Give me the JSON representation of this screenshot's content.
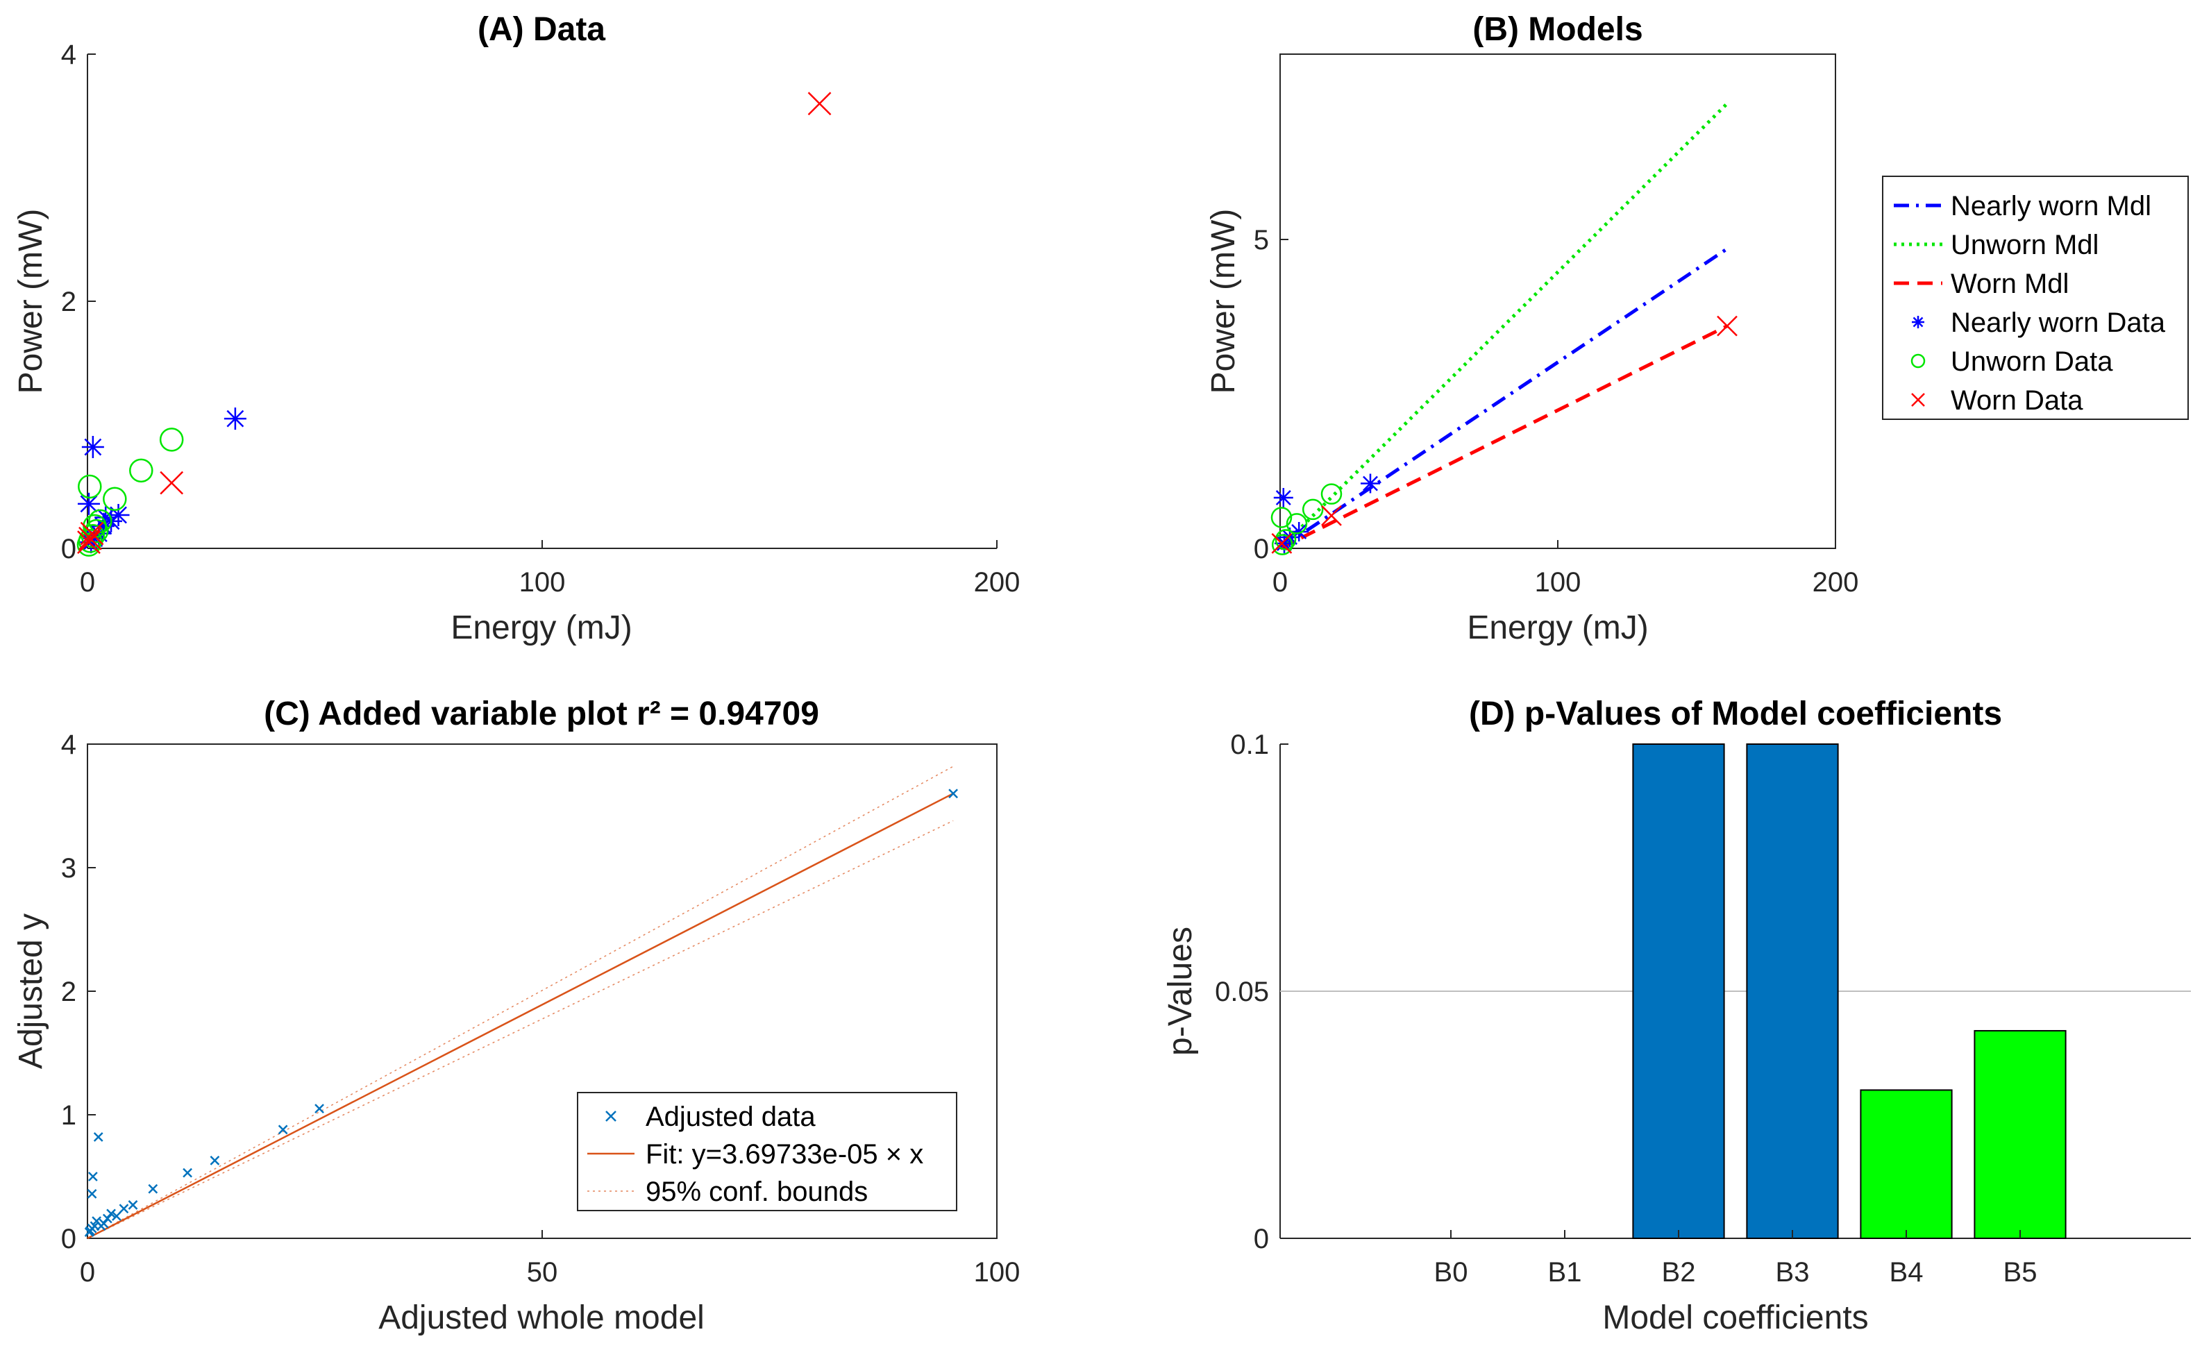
{
  "colors": {
    "nearly_worn": "#0000ff",
    "unworn": "#00e600",
    "worn": "#ff0000",
    "scatter_c": "#0072bd",
    "fit_c": "#d95319",
    "bar_blue": "#0072bd",
    "bar_green": "#00ff00",
    "refline": "#bfbfbf"
  },
  "chart_data": [
    {
      "id": "A",
      "type": "scatter",
      "title": "(A) Data",
      "xlabel": "Energy (mJ)",
      "ylabel": "Power (mW)",
      "xlim": [
        0,
        200
      ],
      "ylim": [
        0,
        4
      ],
      "xticks": [
        "0",
        "100",
        "200"
      ],
      "yticks": [
        "0",
        "2",
        "4"
      ],
      "grid": false,
      "series": [
        {
          "marker": "asterisk",
          "color": "#0000ff",
          "points": [
            [
              0.3,
              0.36
            ],
            [
              1.2,
              0.82
            ],
            [
              32.5,
              1.05
            ],
            [
              6.8,
              0.27
            ],
            [
              5.2,
              0.22
            ],
            [
              3.5,
              0.18
            ],
            [
              2.5,
              0.12
            ],
            [
              1.5,
              0.08
            ],
            [
              0.8,
              0.05
            ],
            [
              4.0,
              0.25
            ]
          ]
        },
        {
          "marker": "circle",
          "color": "#00e600",
          "points": [
            [
              0.5,
              0.5
            ],
            [
              18.5,
              0.88
            ],
            [
              11.8,
              0.63
            ],
            [
              6.0,
              0.4
            ],
            [
              2.8,
              0.22
            ],
            [
              2.0,
              0.14
            ],
            [
              1.2,
              0.1
            ],
            [
              0.6,
              0.06
            ],
            [
              0.3,
              0.03
            ],
            [
              1.6,
              0.18
            ]
          ]
        },
        {
          "marker": "x",
          "color": "#ff0000",
          "points": [
            [
              161,
              3.6
            ],
            [
              18.5,
              0.53
            ],
            [
              0.6,
              0.08
            ],
            [
              0.3,
              0.05
            ],
            [
              1.0,
              0.12
            ]
          ]
        }
      ]
    },
    {
      "id": "B",
      "type": "line",
      "title": "(B) Models",
      "xlabel": "Energy (mJ)",
      "ylabel": "Power (mW)",
      "xlim": [
        0,
        200
      ],
      "ylim": [
        0,
        8
      ],
      "xticks": [
        "0",
        "100",
        "200"
      ],
      "yticks": [
        "0",
        "5"
      ],
      "grid": false,
      "legend_position": "outside-right",
      "series": [
        {
          "name": "Nearly worn Mdl",
          "style": "dashdot",
          "color": "#0000ff",
          "points": [
            [
              0,
              0
            ],
            [
              161,
              4.85
            ]
          ]
        },
        {
          "name": "Unworn Mdl",
          "style": "dotted",
          "color": "#00e600",
          "points": [
            [
              0,
              0
            ],
            [
              161,
              7.2
            ]
          ]
        },
        {
          "name": "Worn Mdl",
          "style": "dashed",
          "color": "#ff0000",
          "points": [
            [
              0,
              0
            ],
            [
              161,
              3.6
            ]
          ]
        },
        {
          "name": "Nearly worn Data",
          "marker": "asterisk",
          "color": "#0000ff",
          "points": [
            [
              1.2,
              0.82
            ],
            [
              32.5,
              1.05
            ],
            [
              6.8,
              0.27
            ],
            [
              3.5,
              0.18
            ],
            [
              1.5,
              0.08
            ]
          ]
        },
        {
          "name": "Unworn Data",
          "marker": "circle",
          "color": "#00e600",
          "points": [
            [
              0.5,
              0.5
            ],
            [
              18.5,
              0.88
            ],
            [
              11.8,
              0.63
            ],
            [
              6.0,
              0.4
            ],
            [
              2.0,
              0.14
            ],
            [
              0.8,
              0.06
            ]
          ]
        },
        {
          "name": "Worn Data",
          "marker": "x",
          "color": "#ff0000",
          "points": [
            [
              161,
              3.6
            ],
            [
              18.5,
              0.53
            ],
            [
              0.6,
              0.08
            ]
          ]
        }
      ]
    },
    {
      "id": "C",
      "type": "scatter",
      "title": "(C) Added variable plot r² = 0.94709",
      "xlabel": "Adjusted whole model",
      "ylabel": "Adjusted y",
      "xlim": [
        0,
        100
      ],
      "ylim": [
        0,
        4
      ],
      "xticks": [
        "0",
        "50",
        "100"
      ],
      "yticks": [
        "0",
        "1",
        "2",
        "3",
        "4"
      ],
      "grid": false,
      "legend_position": "bottom-right",
      "series": [
        {
          "name": "Adjusted data",
          "marker": "x",
          "color": "#0072bd",
          "points": [
            [
              95.2,
              3.6
            ],
            [
              25.5,
              1.05
            ],
            [
              21.5,
              0.88
            ],
            [
              14,
              0.63
            ],
            [
              11,
              0.53
            ],
            [
              7.2,
              0.4
            ],
            [
              5,
              0.27
            ],
            [
              4,
              0.24
            ],
            [
              3.2,
              0.18
            ],
            [
              2.6,
              0.2
            ],
            [
              2.2,
              0.16
            ],
            [
              1.8,
              0.12
            ],
            [
              1.2,
              0.82
            ],
            [
              0.6,
              0.5
            ],
            [
              0.5,
              0.36
            ],
            [
              1.0,
              0.14
            ],
            [
              0.8,
              0.1
            ],
            [
              0.5,
              0.08
            ],
            [
              0.3,
              0.06
            ],
            [
              0.2,
              0.05
            ],
            [
              1.5,
              0.1
            ]
          ]
        },
        {
          "name": "Fit: y=3.69733e-05 × x",
          "style": "solid",
          "color": "#d95319",
          "points": [
            [
              0,
              0
            ],
            [
              95.2,
              3.6
            ]
          ]
        },
        {
          "name": "95% conf. bounds",
          "style": "dotted",
          "color": "#d95319",
          "upper": [
            [
              0,
              0
            ],
            [
              95.2,
              3.82
            ]
          ],
          "lower": [
            [
              0,
              0
            ],
            [
              95.2,
              3.38
            ]
          ]
        }
      ]
    },
    {
      "id": "D",
      "type": "bar",
      "title": "(D) p-Values of Model coefficients",
      "xlabel": "Model coefficients",
      "ylabel": "p-Values",
      "categories": [
        "B0",
        "B1",
        "B2",
        "B3",
        "B4",
        "B5"
      ],
      "values": [
        0,
        0,
        0.1,
        0.1,
        0.03,
        0.042
      ],
      "bar_colors": [
        "#0072bd",
        "#0072bd",
        "#0072bd",
        "#0072bd",
        "#00ff00",
        "#00ff00"
      ],
      "ylim": [
        0,
        0.1
      ],
      "yticks": [
        "0",
        "0.05",
        "0.1"
      ],
      "reference_line": 0.05,
      "grid": false
    }
  ]
}
